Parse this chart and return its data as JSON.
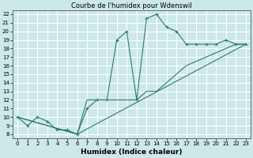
{
  "title": "Courbe de l'humidex pour Wdenswil",
  "xlabel": "Humidex (Indice chaleur)",
  "xlim": [
    -0.5,
    23.5
  ],
  "ylim": [
    7.5,
    22.5
  ],
  "yticks": [
    8,
    9,
    10,
    11,
    12,
    13,
    14,
    15,
    16,
    17,
    18,
    19,
    20,
    21,
    22
  ],
  "xticks": [
    0,
    1,
    2,
    3,
    4,
    5,
    6,
    7,
    8,
    9,
    10,
    11,
    12,
    13,
    14,
    15,
    16,
    17,
    18,
    19,
    20,
    21,
    22,
    23
  ],
  "bg_color": "#cce8e8",
  "line_color": "#2d7b6e",
  "grid_color": "#ffffff",
  "curve1_x": [
    0,
    1,
    2,
    3,
    4,
    5,
    6,
    7,
    8,
    9,
    10,
    11,
    12,
    13,
    14,
    15,
    16,
    17,
    18,
    19,
    20,
    21,
    22,
    23
  ],
  "curve1_y": [
    10,
    9,
    10,
    9.5,
    8.5,
    8.5,
    8,
    11,
    12,
    12,
    19,
    20,
    12,
    21.5,
    22,
    20.5,
    20,
    18.5,
    18.5,
    18.5,
    18.5,
    19,
    18.5,
    18.5
  ],
  "curve2_x": [
    0,
    6,
    7,
    8,
    9,
    10,
    11,
    12,
    13,
    14,
    15,
    16,
    17,
    18,
    19,
    20,
    21,
    22,
    23
  ],
  "curve2_y": [
    10,
    8,
    12,
    12,
    12,
    12,
    12,
    12,
    13,
    13,
    14,
    15,
    16,
    16.5,
    17,
    17.5,
    18,
    18.5,
    18.5
  ],
  "curve3_x": [
    0,
    6,
    23
  ],
  "curve3_y": [
    10,
    8,
    18.5
  ]
}
